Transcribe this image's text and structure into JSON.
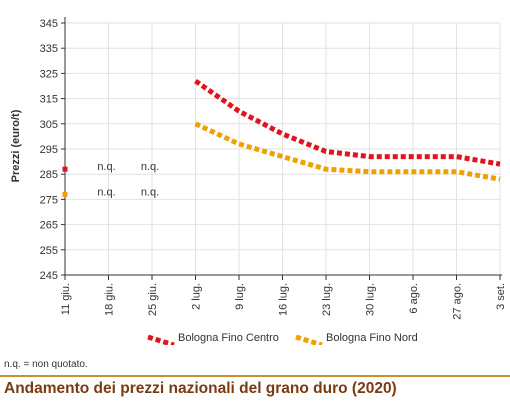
{
  "colors": {
    "centro": "#e0141e",
    "nord": "#f0a000",
    "axis": "#333333",
    "grid": "#e2e2e2",
    "title_text": "#7a3a12",
    "title_rule": "#c8912e"
  },
  "title": "Andamento dei prezzi nazionali del grano duro (2020)",
  "footnote": "n.q. = non quotato.",
  "chart_data": {
    "type": "line",
    "title": "Andamento dei prezzi nazionali del grano duro (2020)",
    "xlabel": "",
    "ylabel": "Prezzi (euro/t)",
    "ylim": [
      245,
      345
    ],
    "yticks": [
      245,
      255,
      265,
      275,
      285,
      295,
      305,
      315,
      325,
      335,
      345
    ],
    "categories": [
      "11 giu.",
      "18 giu.",
      "25 giu.",
      "2 lug.",
      "9 lug.",
      "16 lug.",
      "23 lug.",
      "30 lug.",
      "6 ago.",
      "27 ago.",
      "3 set."
    ],
    "grid": true,
    "legend_position": "bottom",
    "na_label": "n.q.",
    "na_points": [
      {
        "series": 0,
        "category": "18 giu."
      },
      {
        "series": 0,
        "category": "25 giu."
      },
      {
        "series": 1,
        "category": "18 giu."
      },
      {
        "series": 1,
        "category": "25 giu."
      }
    ],
    "series": [
      {
        "name": "Bologna Fino Centro",
        "color": "#e0141e",
        "values": [
          287,
          null,
          null,
          322,
          310,
          301,
          294,
          292,
          292,
          292,
          289
        ]
      },
      {
        "name": "Bologna Fino Nord",
        "color": "#f0a000",
        "values": [
          277,
          null,
          null,
          305,
          297,
          292,
          287,
          286,
          286,
          286,
          283
        ]
      }
    ]
  }
}
